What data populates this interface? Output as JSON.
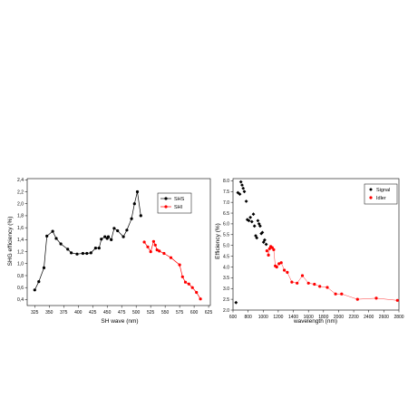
{
  "chart_data": [
    {
      "type": "line",
      "xlabel": "SH wave (nm)",
      "ylabel": "SHG efficiency (%)",
      "xlim": [
        312,
        628
      ],
      "ylim": [
        0.3,
        2.42
      ],
      "xticks": [
        325,
        350,
        375,
        400,
        425,
        450,
        475,
        500,
        525,
        550,
        575,
        600,
        625
      ],
      "yticks": [
        0.4,
        0.6,
        0.8,
        1.0,
        1.2,
        1.4,
        1.6,
        1.8,
        2.0,
        2.2,
        2.4
      ],
      "ytick_labels": [
        "0,4",
        "0,6",
        "0,8",
        "1,0",
        "1,2",
        "1,4",
        "1,6",
        "1,8",
        "2,0",
        "2,2",
        "2,4"
      ],
      "legend": "top-right",
      "grid": false,
      "series": [
        {
          "name": "SHS",
          "color": "#000000",
          "x": [
            325,
            332,
            341,
            346,
            356,
            362,
            370,
            382,
            388,
            398,
            408,
            415,
            422,
            430,
            436,
            440,
            446,
            450,
            452,
            457,
            462,
            468,
            478,
            484,
            492,
            497,
            502,
            508
          ],
          "y": [
            0.56,
            0.7,
            0.93,
            1.46,
            1.54,
            1.42,
            1.33,
            1.24,
            1.18,
            1.16,
            1.17,
            1.17,
            1.18,
            1.26,
            1.26,
            1.41,
            1.45,
            1.42,
            1.45,
            1.4,
            1.59,
            1.55,
            1.45,
            1.56,
            1.75,
            2.0,
            2.2,
            1.8
          ]
        },
        {
          "name": "SHI",
          "color": "#ff0000",
          "x": [
            514,
            520,
            525,
            530,
            533,
            536,
            540,
            548,
            560,
            575,
            580,
            585,
            591,
            597,
            604,
            611
          ],
          "y": [
            1.36,
            1.28,
            1.2,
            1.37,
            1.31,
            1.23,
            1.21,
            1.17,
            1.1,
            0.98,
            0.78,
            0.69,
            0.66,
            0.6,
            0.52,
            0.41
          ]
        }
      ]
    },
    {
      "type": "scatter",
      "xlabel": "wavelength (nm)",
      "ylabel": "Efficiency (%)",
      "xlim": [
        600,
        2800
      ],
      "ylim": [
        2.0,
        8.1
      ],
      "xticks": [
        600,
        800,
        1000,
        1200,
        1400,
        1600,
        1800,
        2000,
        2200,
        2400,
        2600,
        2800
      ],
      "yticks": [
        2.0,
        2.5,
        3.0,
        3.5,
        4.0,
        4.5,
        5.0,
        5.5,
        6.0,
        6.5,
        7.0,
        7.5,
        8.0
      ],
      "ytick_labels": [
        "2.0",
        "2.5",
        "3.0",
        "3.5",
        "4.0",
        "4.5",
        "5.0",
        "5.5",
        "6.0",
        "6.5",
        "7.0",
        "7.5",
        "8.0"
      ],
      "legend": "top-right",
      "grid": false,
      "series": [
        {
          "name": "Signal",
          "color": "#000000",
          "marker": "diamond",
          "connect": false,
          "x": [
            640,
            665,
            690,
            705,
            720,
            735,
            750,
            775,
            790,
            810,
            830,
            850,
            870,
            885,
            900,
            915,
            930,
            945,
            960,
            975,
            990,
            1005,
            1020,
            1040
          ],
          "y": [
            2.35,
            7.45,
            7.38,
            7.95,
            7.8,
            7.65,
            7.5,
            7.05,
            6.2,
            6.15,
            6.3,
            6.1,
            6.45,
            5.9,
            5.45,
            5.35,
            6.15,
            6.0,
            5.9,
            5.55,
            5.6,
            5.15,
            5.25,
            5.05
          ]
        },
        {
          "name": "Idler",
          "color": "#ff0000",
          "marker": "circle",
          "connect": true,
          "x": [
            1050,
            1070,
            1085,
            1100,
            1120,
            1140,
            1160,
            1180,
            1210,
            1240,
            1280,
            1320,
            1380,
            1450,
            1520,
            1600,
            1680,
            1750,
            1850,
            1960,
            2040,
            2250,
            2500,
            2780
          ],
          "y": [
            4.75,
            4.55,
            4.85,
            4.95,
            4.9,
            4.8,
            4.05,
            4.0,
            4.15,
            4.2,
            3.85,
            3.75,
            3.3,
            3.25,
            3.6,
            3.25,
            3.2,
            3.1,
            3.05,
            2.75,
            2.75,
            2.5,
            2.55,
            2.45
          ]
        }
      ]
    }
  ]
}
